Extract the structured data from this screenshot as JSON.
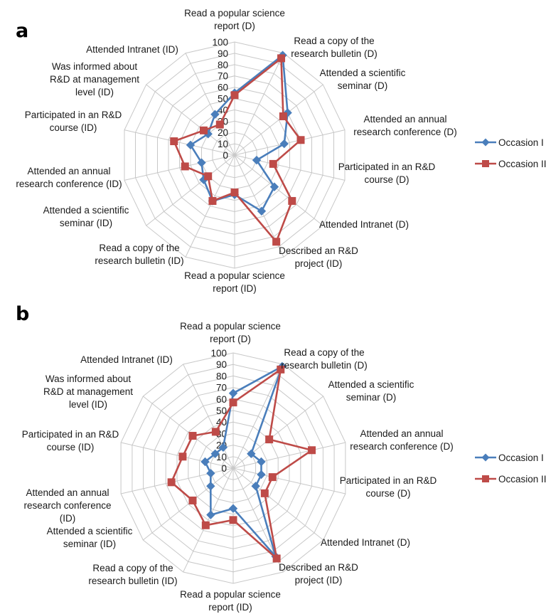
{
  "chart_data": [
    {
      "type": "radar",
      "panel": "a",
      "rlim": [
        0,
        100
      ],
      "ticks": [
        "0",
        "10",
        "20",
        "30",
        "40",
        "50",
        "60",
        "70",
        "80",
        "90",
        "100"
      ],
      "legend_position": "right",
      "categories": [
        "Read a popular science report (D)",
        "Read a copy of the research bulletin (D)",
        "Attended a scientific seminar (D)",
        "Attended an annual research conference (D)",
        "Participated in an R&D course (D)",
        "Attended Intranet (D)",
        "Described an R&D project (ID)",
        "Read a popular science report (ID)",
        "Read a copy of the research bulletin (ID)",
        "Attended a scientific seminar (ID)",
        "Attended an annual research conference (ID)",
        "Participated in an R&D course (ID)",
        "Was informed about R&D at management level (ID)",
        "Attended Intranet (ID)"
      ],
      "series": [
        {
          "name": "Occasion I",
          "color": "#4A7EBB",
          "marker": "diamond",
          "values": [
            55,
            98,
            60,
            45,
            20,
            45,
            55,
            35,
            45,
            35,
            30,
            40,
            30,
            40
          ]
        },
        {
          "name": "Occasion II",
          "color": "#BE4B48",
          "marker": "square",
          "values": [
            53,
            95,
            55,
            60,
            35,
            65,
            85,
            33,
            45,
            30,
            45,
            55,
            35,
            30
          ]
        }
      ]
    },
    {
      "type": "radar",
      "panel": "b",
      "rlim": [
        0,
        100
      ],
      "ticks": [
        "0",
        "10",
        "20",
        "30",
        "40",
        "50",
        "60",
        "70",
        "80",
        "90",
        "100"
      ],
      "legend_position": "right",
      "categories": [
        "Read a popular science report (D)",
        "Read a copy of the research bulletin (D)",
        "Attended a scientific seminar (D)",
        "Attended an annual research conference (D)",
        "Participated in an R&D course (D)",
        "Attended Intranet (D)",
        "Described an R&D project (ID)",
        "Read a popular science report (ID)",
        "Read a copy of the research bulletin (ID)",
        "Attended a scientific seminar (ID)",
        "Attended an annual research conference (ID)",
        "Participated in an R&D course (ID)",
        "Was informed about R&D at management level (ID)",
        "Attended Intranet (ID)"
      ],
      "series": [
        {
          "name": "Occasion I",
          "color": "#4A7EBB",
          "marker": "diamond",
          "values": [
            65,
            98,
            20,
            25,
            25,
            25,
            85,
            35,
            45,
            25,
            20,
            25,
            20,
            20
          ]
        },
        {
          "name": "Occasion II",
          "color": "#BE4B48",
          "marker": "square",
          "values": [
            57,
            95,
            40,
            70,
            35,
            35,
            87,
            45,
            55,
            45,
            55,
            45,
            45,
            35
          ]
        }
      ]
    }
  ],
  "panels": [
    {
      "letter": "a",
      "labels": [
        [
          "Read a popular science",
          "report (D)"
        ],
        [
          "Read a copy of the",
          "research bulletin (D)"
        ],
        [
          "Attended a scientific",
          "seminar (D)"
        ],
        [
          "Attended an annual",
          "research conference (D)"
        ],
        [
          "Participated in an R&D",
          "course (D)"
        ],
        [
          "Attended Intranet (D)"
        ],
        [
          "Described an R&D",
          "project (ID)"
        ],
        [
          "Read a popular science",
          "report (ID)"
        ],
        [
          "Read a copy of the",
          "research bulletin (ID)"
        ],
        [
          "Attended a scientific",
          "seminar (ID)"
        ],
        [
          "Attended an annual",
          "research conference (ID)"
        ],
        [
          "Participated in an R&D",
          "course (ID)"
        ],
        [
          "Was informed about",
          "R&D at management",
          "level (ID)"
        ],
        [
          "Attended Intranet (ID)"
        ]
      ],
      "legend": [
        "Occasion I",
        "Occasion II"
      ]
    },
    {
      "letter": "b",
      "labels": [
        [
          "Read a popular science",
          "report (D)"
        ],
        [
          "Read a copy of the",
          "research bulletin (D)"
        ],
        [
          "Attended a scientific",
          "seminar (D)"
        ],
        [
          "Attended an annual",
          "research conference (D)"
        ],
        [
          "Participated in an R&D",
          "course (D)"
        ],
        [
          "Attended Intranet (D)"
        ],
        [
          "Described an R&D",
          "project (ID)"
        ],
        [
          "Read a popular science",
          "report (ID)"
        ],
        [
          "Read a copy of the",
          "research bulletin (ID)"
        ],
        [
          "Attended a scientific",
          "seminar (ID)"
        ],
        [
          "Attended an annual",
          "research conference",
          "(ID)"
        ],
        [
          "Participated in an R&D",
          "course (ID)"
        ],
        [
          "Was informed about",
          "R&D at management",
          "level (ID)"
        ],
        [
          "Attended Intranet (ID)"
        ]
      ],
      "legend": [
        "Occasion I",
        "Occasion II"
      ]
    }
  ]
}
